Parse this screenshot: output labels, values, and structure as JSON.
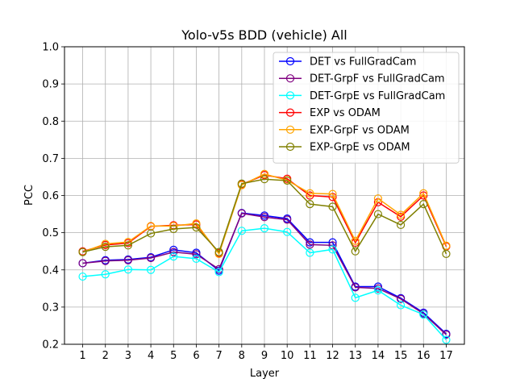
{
  "chart_data": {
    "type": "line",
    "title": "Yolo-v5s BDD (vehicle) All",
    "xlabel": "Layer",
    "ylabel": "PCC",
    "x": [
      1,
      2,
      3,
      4,
      5,
      6,
      7,
      8,
      9,
      10,
      11,
      12,
      13,
      14,
      15,
      16,
      17
    ],
    "xticks": [
      "1",
      "2",
      "3",
      "4",
      "5",
      "6",
      "7",
      "8",
      "9",
      "10",
      "11",
      "12",
      "13",
      "14",
      "15",
      "16",
      "17"
    ],
    "ylim": [
      0.2,
      1.0
    ],
    "yticks": [
      "0.2",
      "0.3",
      "0.4",
      "0.5",
      "0.6",
      "0.7",
      "0.8",
      "0.9",
      "1.0"
    ],
    "grid": true,
    "legend_position": "top-right",
    "marker": "open-circle",
    "series": [
      {
        "name": "DET vs FullGradCam",
        "color": "#0000ff",
        "values": [
          0.418,
          0.426,
          0.428,
          0.434,
          0.454,
          0.446,
          0.398,
          0.553,
          0.546,
          0.538,
          0.474,
          0.474,
          0.355,
          0.355,
          0.324,
          0.285,
          0.228
        ]
      },
      {
        "name": "DET-GrpF vs FullGradCam",
        "color": "#800080",
        "values": [
          0.418,
          0.424,
          0.426,
          0.432,
          0.448,
          0.442,
          0.402,
          0.552,
          0.542,
          0.535,
          0.468,
          0.466,
          0.353,
          0.35,
          0.322,
          0.282,
          0.226
        ]
      },
      {
        "name": "DET-GrpE vs FullGradCam",
        "color": "#00ffff",
        "values": [
          0.382,
          0.388,
          0.401,
          0.4,
          0.436,
          0.43,
          0.394,
          0.505,
          0.512,
          0.502,
          0.446,
          0.455,
          0.325,
          0.345,
          0.305,
          0.28,
          0.212
        ]
      },
      {
        "name": "EXP vs ODAM",
        "color": "#ff0000",
        "values": [
          0.45,
          0.467,
          0.472,
          0.517,
          0.52,
          0.522,
          0.445,
          0.63,
          0.655,
          0.645,
          0.6,
          0.596,
          0.473,
          0.582,
          0.543,
          0.6,
          0.463
        ]
      },
      {
        "name": "EXP-GrpF vs ODAM",
        "color": "#ffa500",
        "values": [
          0.448,
          0.47,
          0.475,
          0.518,
          0.518,
          0.525,
          0.443,
          0.628,
          0.658,
          0.641,
          0.606,
          0.604,
          0.478,
          0.592,
          0.548,
          0.606,
          0.465
        ]
      },
      {
        "name": "EXP-GrpE vs ODAM",
        "color": "#808000",
        "values": [
          0.448,
          0.462,
          0.466,
          0.498,
          0.51,
          0.514,
          0.448,
          0.632,
          0.644,
          0.64,
          0.577,
          0.57,
          0.45,
          0.55,
          0.521,
          0.577,
          0.443
        ]
      }
    ]
  }
}
